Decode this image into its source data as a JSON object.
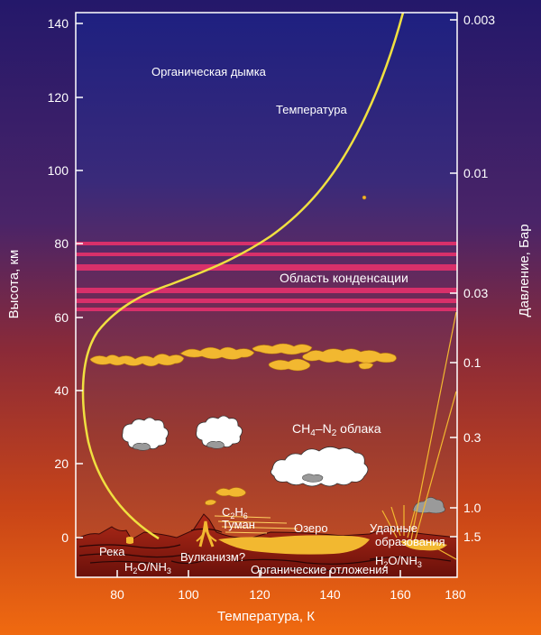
{
  "left_axis": {
    "title": "Высота, км",
    "ticks": [
      "140",
      "120",
      "100",
      "80",
      "60",
      "40",
      "20",
      "0"
    ]
  },
  "right_axis": {
    "title": "Давление, Бар",
    "ticks": [
      "0.003",
      "0.01",
      "0.03",
      "0.1",
      "0.3",
      "1.0",
      "1.5"
    ]
  },
  "bottom_axis": {
    "title": "Температура, К",
    "ticks": [
      "80",
      "100",
      "120",
      "140",
      "160",
      "180"
    ]
  },
  "labels": {
    "haze": "Органическая дымка",
    "temperature": "Температура",
    "condensation": "Область конденсации",
    "clouds_ch4": "CH",
    "clouds_4": "4",
    "clouds_n2": "–N",
    "clouds_2": "2",
    "clouds_word": " облака",
    "c2h6_c": "C",
    "c2h6_2": "2",
    "c2h6_h": "H",
    "c2h6_6": "6",
    "fog": "Туман",
    "lake": "Озеро",
    "river": "Река",
    "volcanism": "Вулканизм?",
    "impact_1": "Ударные",
    "impact_2": "образования",
    "h2o_nh3": "H",
    "organic_deposits": "Органические отложения"
  },
  "colors": {
    "sky_top": "#1c1e78",
    "sky_mid": "#5c2a6a",
    "sky_bottom": "#b8441c",
    "frame_top": "#2a1a6a",
    "frame_bottom": "#e8601a",
    "temperature_curve": "#f0e040",
    "condensation_bands": "#d8306a",
    "clouds": "#f2b830",
    "ground": "#8a1a10"
  }
}
